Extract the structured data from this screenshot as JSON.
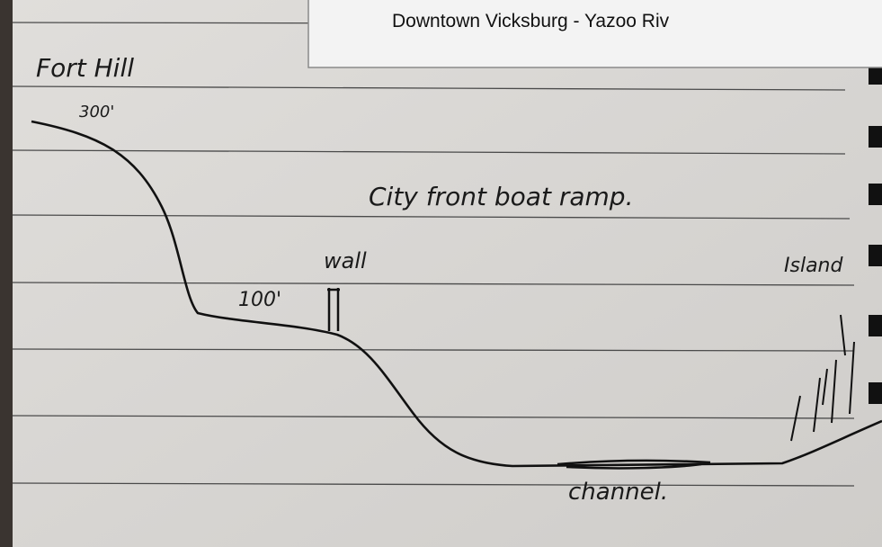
{
  "overlay": {
    "title": "Downtown Vicksburg - Yazoo Riv"
  },
  "sketch": {
    "labels": [
      "Fort Hill",
      "300'",
      "City front boat ramp.",
      "wall",
      "100'",
      "Island",
      "channel."
    ]
  }
}
